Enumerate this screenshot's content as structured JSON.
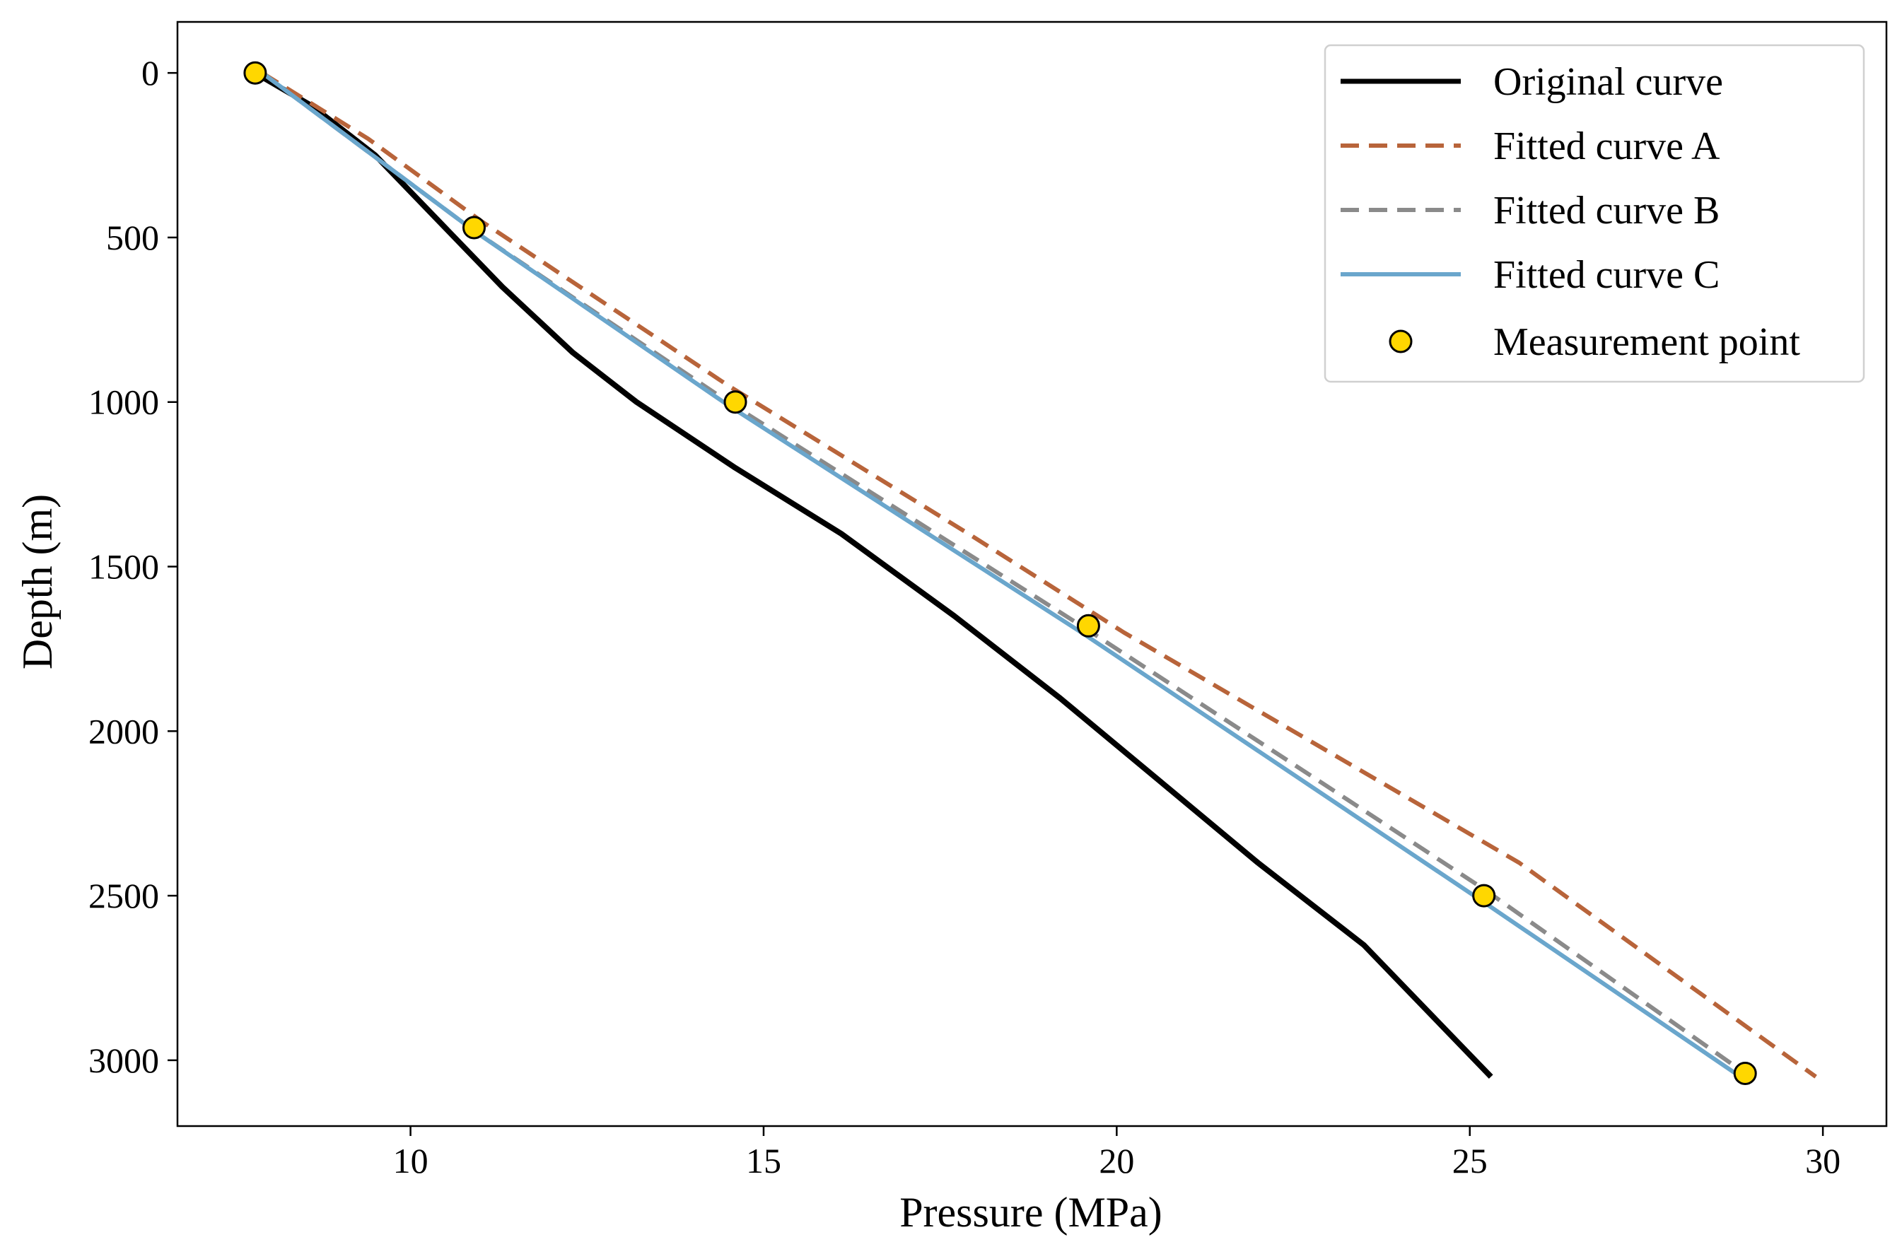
{
  "chart_data": {
    "type": "line",
    "title": "",
    "xlabel": "Pressure (MPa)",
    "ylabel": "Depth (m)",
    "xlim": [
      6.7,
      30.9
    ],
    "ylim": [
      3200,
      -155
    ],
    "y_inverted": true,
    "xticks": [
      10,
      15,
      20,
      25,
      30
    ],
    "yticks": [
      0,
      500,
      1000,
      1500,
      2000,
      2500,
      3000
    ],
    "grid": false,
    "legend_position": "top-right",
    "series": [
      {
        "name": "Original curve",
        "style": "solid",
        "color": "#000000",
        "points": [
          [
            7.8,
            0
          ],
          [
            8.6,
            100
          ],
          [
            9.5,
            250
          ],
          [
            10.4,
            450
          ],
          [
            11.3,
            650
          ],
          [
            12.3,
            850
          ],
          [
            13.2,
            1000
          ],
          [
            14.6,
            1200
          ],
          [
            16.1,
            1400
          ],
          [
            17.7,
            1650
          ],
          [
            19.2,
            1900
          ],
          [
            20.6,
            2150
          ],
          [
            22.0,
            2400
          ],
          [
            23.5,
            2650
          ],
          [
            25.3,
            3050
          ]
        ]
      },
      {
        "name": "Fitted curve A",
        "style": "dashed",
        "color": "#b8643a",
        "points": [
          [
            7.9,
            0
          ],
          [
            9.4,
            200
          ],
          [
            11.0,
            450
          ],
          [
            14.5,
            950
          ],
          [
            17.9,
            1400
          ],
          [
            20.1,
            1700
          ],
          [
            22.5,
            2000
          ],
          [
            25.7,
            2400
          ],
          [
            29.9,
            3050
          ]
        ]
      },
      {
        "name": "Fitted curve B",
        "style": "dashed",
        "color": "#8a8a8a",
        "points": [
          [
            7.9,
            0
          ],
          [
            10.9,
            480
          ],
          [
            14.5,
            1000
          ],
          [
            19.5,
            1680
          ],
          [
            22.5,
            2100
          ],
          [
            25.2,
            2480
          ],
          [
            28.9,
            3040
          ]
        ]
      },
      {
        "name": "Fitted curve C",
        "style": "solid",
        "color": "#6aa6cc",
        "points": [
          [
            7.9,
            0
          ],
          [
            10.9,
            480
          ],
          [
            14.5,
            1010
          ],
          [
            19.5,
            1700
          ],
          [
            25.2,
            2520
          ],
          [
            28.9,
            3060
          ]
        ]
      }
    ],
    "measurement_points": {
      "name": "Measurement point",
      "color": "#ffd700",
      "points": [
        [
          7.8,
          0
        ],
        [
          10.9,
          470
        ],
        [
          14.6,
          1000
        ],
        [
          19.6,
          1680
        ],
        [
          25.2,
          2500
        ],
        [
          28.9,
          3040
        ]
      ]
    }
  }
}
